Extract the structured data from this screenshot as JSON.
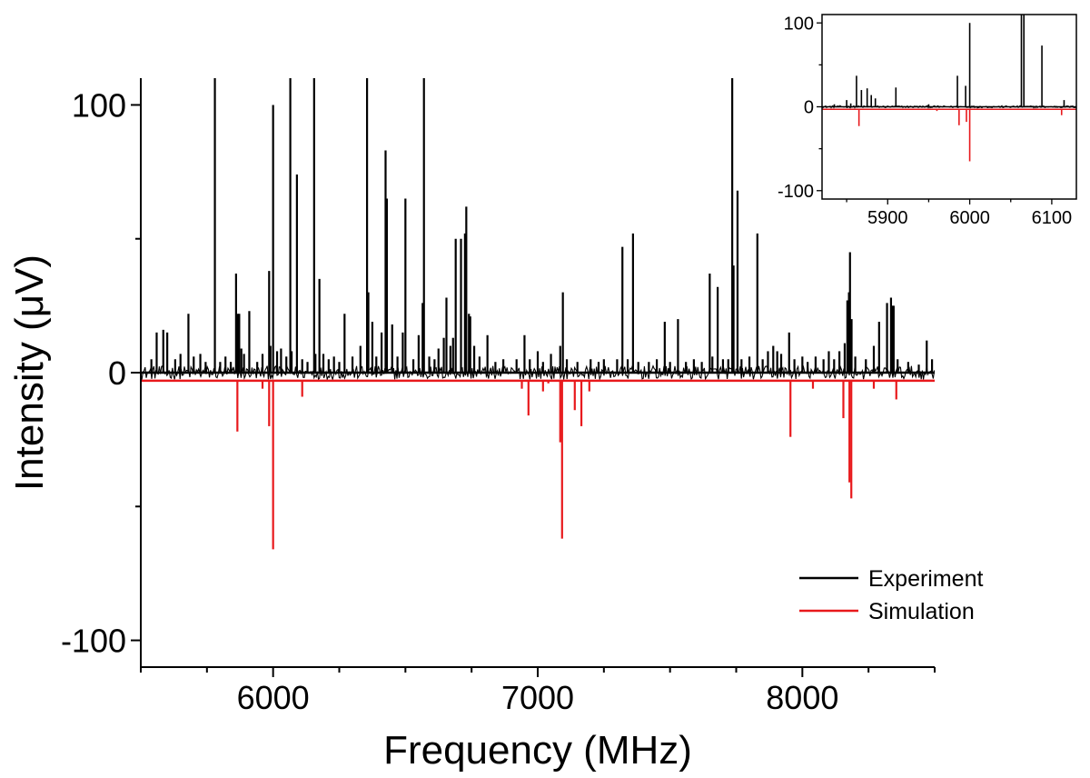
{
  "chart_data": [
    {
      "type": "line",
      "role": "main",
      "xlabel": "Frequency (MHz)",
      "ylabel": "Intensity (μV)",
      "xlim": [
        5500,
        8500
      ],
      "ylim": [
        -110,
        110
      ],
      "xticks": [
        6000,
        7000,
        8000
      ],
      "xtick_labels": [
        "6000",
        "7000",
        "8000"
      ],
      "xminor_step": 250,
      "yticks": [
        100,
        0,
        -100
      ],
      "ytick_labels": [
        "100",
        "0",
        "-100"
      ],
      "yminor_step": 50,
      "grid": false,
      "legend_position": "bottom-right",
      "series": [
        {
          "name": "Experiment",
          "color": "#000000",
          "baseline": 0,
          "noise_amplitude": 2.5,
          "peaks": [
            [
              5540,
              5
            ],
            [
              5560,
              15
            ],
            [
              5585,
              16
            ],
            [
              5600,
              15
            ],
            [
              5630,
              5
            ],
            [
              5650,
              7
            ],
            [
              5680,
              22
            ],
            [
              5700,
              6
            ],
            [
              5725,
              7
            ],
            [
              5745,
              4
            ],
            [
              5780,
              110
            ],
            [
              5800,
              4
            ],
            [
              5820,
              6
            ],
            [
              5840,
              4
            ],
            [
              5860,
              37
            ],
            [
              5866,
              22
            ],
            [
              5872,
              22
            ],
            [
              5880,
              9
            ],
            [
              5890,
              7
            ],
            [
              5910,
              23
            ],
            [
              5940,
              4
            ],
            [
              5960,
              7
            ],
            [
              5985,
              38
            ],
            [
              5990,
              10
            ],
            [
              6000,
              100
            ],
            [
              6015,
              8
            ],
            [
              6030,
              9
            ],
            [
              6050,
              6
            ],
            [
              6065,
              110
            ],
            [
              6070,
              8
            ],
            [
              6090,
              74
            ],
            [
              6110,
              5
            ],
            [
              6130,
              4
            ],
            [
              6155,
              110
            ],
            [
              6160,
              7
            ],
            [
              6175,
              35
            ],
            [
              6190,
              7
            ],
            [
              6210,
              5
            ],
            [
              6230,
              6
            ],
            [
              6250,
              4
            ],
            [
              6270,
              22
            ],
            [
              6300,
              6
            ],
            [
              6330,
              10
            ],
            [
              6355,
              110
            ],
            [
              6360,
              30
            ],
            [
              6375,
              19
            ],
            [
              6390,
              6
            ],
            [
              6410,
              15
            ],
            [
              6425,
              83
            ],
            [
              6430,
              65
            ],
            [
              6450,
              18
            ],
            [
              6470,
              6
            ],
            [
              6490,
              15
            ],
            [
              6500,
              65
            ],
            [
              6530,
              5
            ],
            [
              6550,
              14
            ],
            [
              6565,
              26
            ],
            [
              6570,
              110
            ],
            [
              6590,
              6
            ],
            [
              6610,
              5
            ],
            [
              6625,
              9
            ],
            [
              6645,
              13
            ],
            [
              6655,
              28
            ],
            [
              6670,
              10
            ],
            [
              6680,
              13
            ],
            [
              6690,
              50
            ],
            [
              6710,
              50
            ],
            [
              6725,
              52
            ],
            [
              6730,
              62
            ],
            [
              6740,
              22
            ],
            [
              6745,
              21
            ],
            [
              6760,
              10
            ],
            [
              6780,
              6
            ],
            [
              6810,
              14
            ],
            [
              6840,
              4
            ],
            [
              6870,
              5
            ],
            [
              6920,
              5
            ],
            [
              6950,
              14
            ],
            [
              6970,
              5
            ],
            [
              7000,
              8
            ],
            [
              7020,
              4
            ],
            [
              7050,
              7
            ],
            [
              7085,
              10
            ],
            [
              7095,
              30
            ],
            [
              7110,
              5
            ],
            [
              7150,
              4
            ],
            [
              7200,
              5
            ],
            [
              7230,
              4
            ],
            [
              7250,
              5
            ],
            [
              7300,
              5
            ],
            [
              7320,
              47
            ],
            [
              7340,
              5
            ],
            [
              7360,
              52
            ],
            [
              7380,
              4
            ],
            [
              7420,
              4
            ],
            [
              7450,
              5
            ],
            [
              7480,
              19
            ],
            [
              7500,
              4
            ],
            [
              7530,
              20
            ],
            [
              7560,
              4
            ],
            [
              7590,
              5
            ],
            [
              7620,
              4
            ],
            [
              7650,
              37
            ],
            [
              7660,
              6
            ],
            [
              7680,
              32
            ],
            [
              7700,
              5
            ],
            [
              7720,
              5
            ],
            [
              7735,
              110
            ],
            [
              7740,
              40
            ],
            [
              7755,
              68
            ],
            [
              7770,
              5
            ],
            [
              7800,
              6
            ],
            [
              7830,
              52
            ],
            [
              7850,
              5
            ],
            [
              7870,
              8
            ],
            [
              7890,
              10
            ],
            [
              7905,
              8
            ],
            [
              7920,
              7
            ],
            [
              7950,
              15
            ],
            [
              7970,
              5
            ],
            [
              8000,
              6
            ],
            [
              8020,
              4
            ],
            [
              8050,
              6
            ],
            [
              8080,
              5
            ],
            [
              8100,
              8
            ],
            [
              8120,
              5
            ],
            [
              8140,
              8
            ],
            [
              8160,
              11
            ],
            [
              8170,
              27
            ],
            [
              8176,
              30
            ],
            [
              8180,
              45
            ],
            [
              8186,
              20
            ],
            [
              8200,
              6
            ],
            [
              8240,
              5
            ],
            [
              8270,
              10
            ],
            [
              8290,
              19
            ],
            [
              8320,
              26
            ],
            [
              8335,
              28
            ],
            [
              8340,
              25
            ],
            [
              8345,
              25
            ],
            [
              8360,
              5
            ],
            [
              8400,
              4
            ],
            [
              8440,
              3
            ],
            [
              8470,
              12
            ],
            [
              8490,
              5
            ]
          ]
        },
        {
          "name": "Simulation",
          "color": "#e8191c",
          "baseline": -3,
          "peaks": [
            [
              5865,
              -22
            ],
            [
              5960,
              -6
            ],
            [
              5985,
              -20
            ],
            [
              6000,
              -66
            ],
            [
              6110,
              -9
            ],
            [
              6940,
              -6
            ],
            [
              6965,
              -16
            ],
            [
              7020,
              -7
            ],
            [
              7040,
              -4
            ],
            [
              7085,
              -26
            ],
            [
              7092,
              -62
            ],
            [
              7140,
              -14
            ],
            [
              7165,
              -20
            ],
            [
              7195,
              -7
            ],
            [
              7955,
              -24
            ],
            [
              8040,
              -6
            ],
            [
              8155,
              -17
            ],
            [
              8178,
              -41
            ],
            [
              8185,
              -47
            ],
            [
              8270,
              -6
            ],
            [
              8355,
              -10
            ]
          ]
        }
      ],
      "legend": [
        {
          "label": "Experiment",
          "color": "#000000"
        },
        {
          "label": "Simulation",
          "color": "#e8191c"
        }
      ]
    },
    {
      "type": "line",
      "role": "inset",
      "xlim": [
        5820,
        6130
      ],
      "ylim": [
        -110,
        110
      ],
      "xticks": [
        5900,
        6000,
        6100
      ],
      "xtick_labels": [
        "5900",
        "6000",
        "6100"
      ],
      "xminor_step": 50,
      "yticks": [
        100,
        0,
        -100
      ],
      "ytick_labels": [
        "100",
        "0",
        "-100"
      ],
      "yminor_step": 50,
      "series": [
        {
          "name": "Experiment",
          "color": "#000000",
          "baseline": 0,
          "noise_amplitude": 1.5,
          "peaks": [
            [
              5835,
              3
            ],
            [
              5850,
              8
            ],
            [
              5855,
              4
            ],
            [
              5862,
              37
            ],
            [
              5868,
              20
            ],
            [
              5875,
              22
            ],
            [
              5880,
              14
            ],
            [
              5885,
              10
            ],
            [
              5910,
              23
            ],
            [
              5950,
              3
            ],
            [
              5985,
              37
            ],
            [
              5995,
              25
            ],
            [
              6000,
              100
            ],
            [
              6063,
              110
            ],
            [
              6066,
              110
            ],
            [
              6088,
              73
            ],
            [
              6115,
              8
            ]
          ]
        },
        {
          "name": "Simulation",
          "color": "#e8191c",
          "baseline": -3,
          "peaks": [
            [
              5865,
              -23
            ],
            [
              5960,
              -5
            ],
            [
              5987,
              -22
            ],
            [
              5996,
              -18
            ],
            [
              6000,
              -65
            ],
            [
              6112,
              -10
            ]
          ]
        }
      ]
    }
  ]
}
